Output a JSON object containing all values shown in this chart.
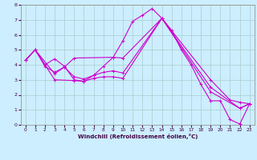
{
  "xlabel": "Windchill (Refroidissement éolien,°C)",
  "background_color": "#cceeff",
  "grid_color": "#aacccc",
  "line_color": "#cc00cc",
  "xlim": [
    -0.5,
    23.5
  ],
  "ylim": [
    0,
    8
  ],
  "xticks": [
    0,
    1,
    2,
    3,
    4,
    5,
    6,
    7,
    8,
    9,
    10,
    11,
    12,
    13,
    14,
    15,
    16,
    17,
    18,
    19,
    20,
    21,
    22,
    23
  ],
  "yticks": [
    0,
    1,
    2,
    3,
    4,
    5,
    6,
    7,
    8
  ],
  "series": [
    {
      "x": [
        0,
        1,
        2,
        3,
        4,
        5,
        6,
        7,
        8,
        9,
        10,
        11,
        12,
        13,
        14,
        15,
        16,
        17,
        18,
        19,
        20,
        21,
        22,
        23
      ],
      "y": [
        4.3,
        5.0,
        4.0,
        4.4,
        3.9,
        3.0,
        2.9,
        3.3,
        3.9,
        4.5,
        5.6,
        6.9,
        7.3,
        7.75,
        7.1,
        6.3,
        5.0,
        4.0,
        2.7,
        1.6,
        1.6,
        0.35,
        0.05,
        1.4
      ]
    },
    {
      "x": [
        0,
        1,
        2,
        3,
        4,
        5,
        9,
        10,
        14,
        19,
        21,
        22,
        23
      ],
      "y": [
        4.3,
        5.0,
        3.9,
        3.5,
        3.85,
        4.45,
        4.5,
        4.45,
        7.1,
        3.0,
        1.65,
        1.5,
        1.4
      ]
    },
    {
      "x": [
        0,
        1,
        3,
        4,
        5,
        6,
        7,
        8,
        9,
        10,
        14,
        19,
        22,
        23
      ],
      "y": [
        4.3,
        5.0,
        3.4,
        3.85,
        3.2,
        3.05,
        3.3,
        3.5,
        3.6,
        3.45,
        7.1,
        2.5,
        1.1,
        1.4
      ]
    },
    {
      "x": [
        0,
        1,
        3,
        5,
        6,
        7,
        8,
        9,
        10,
        14,
        19,
        22,
        23
      ],
      "y": [
        4.3,
        5.0,
        3.0,
        2.95,
        2.9,
        3.1,
        3.2,
        3.2,
        3.1,
        7.1,
        2.2,
        1.1,
        1.4
      ]
    }
  ]
}
